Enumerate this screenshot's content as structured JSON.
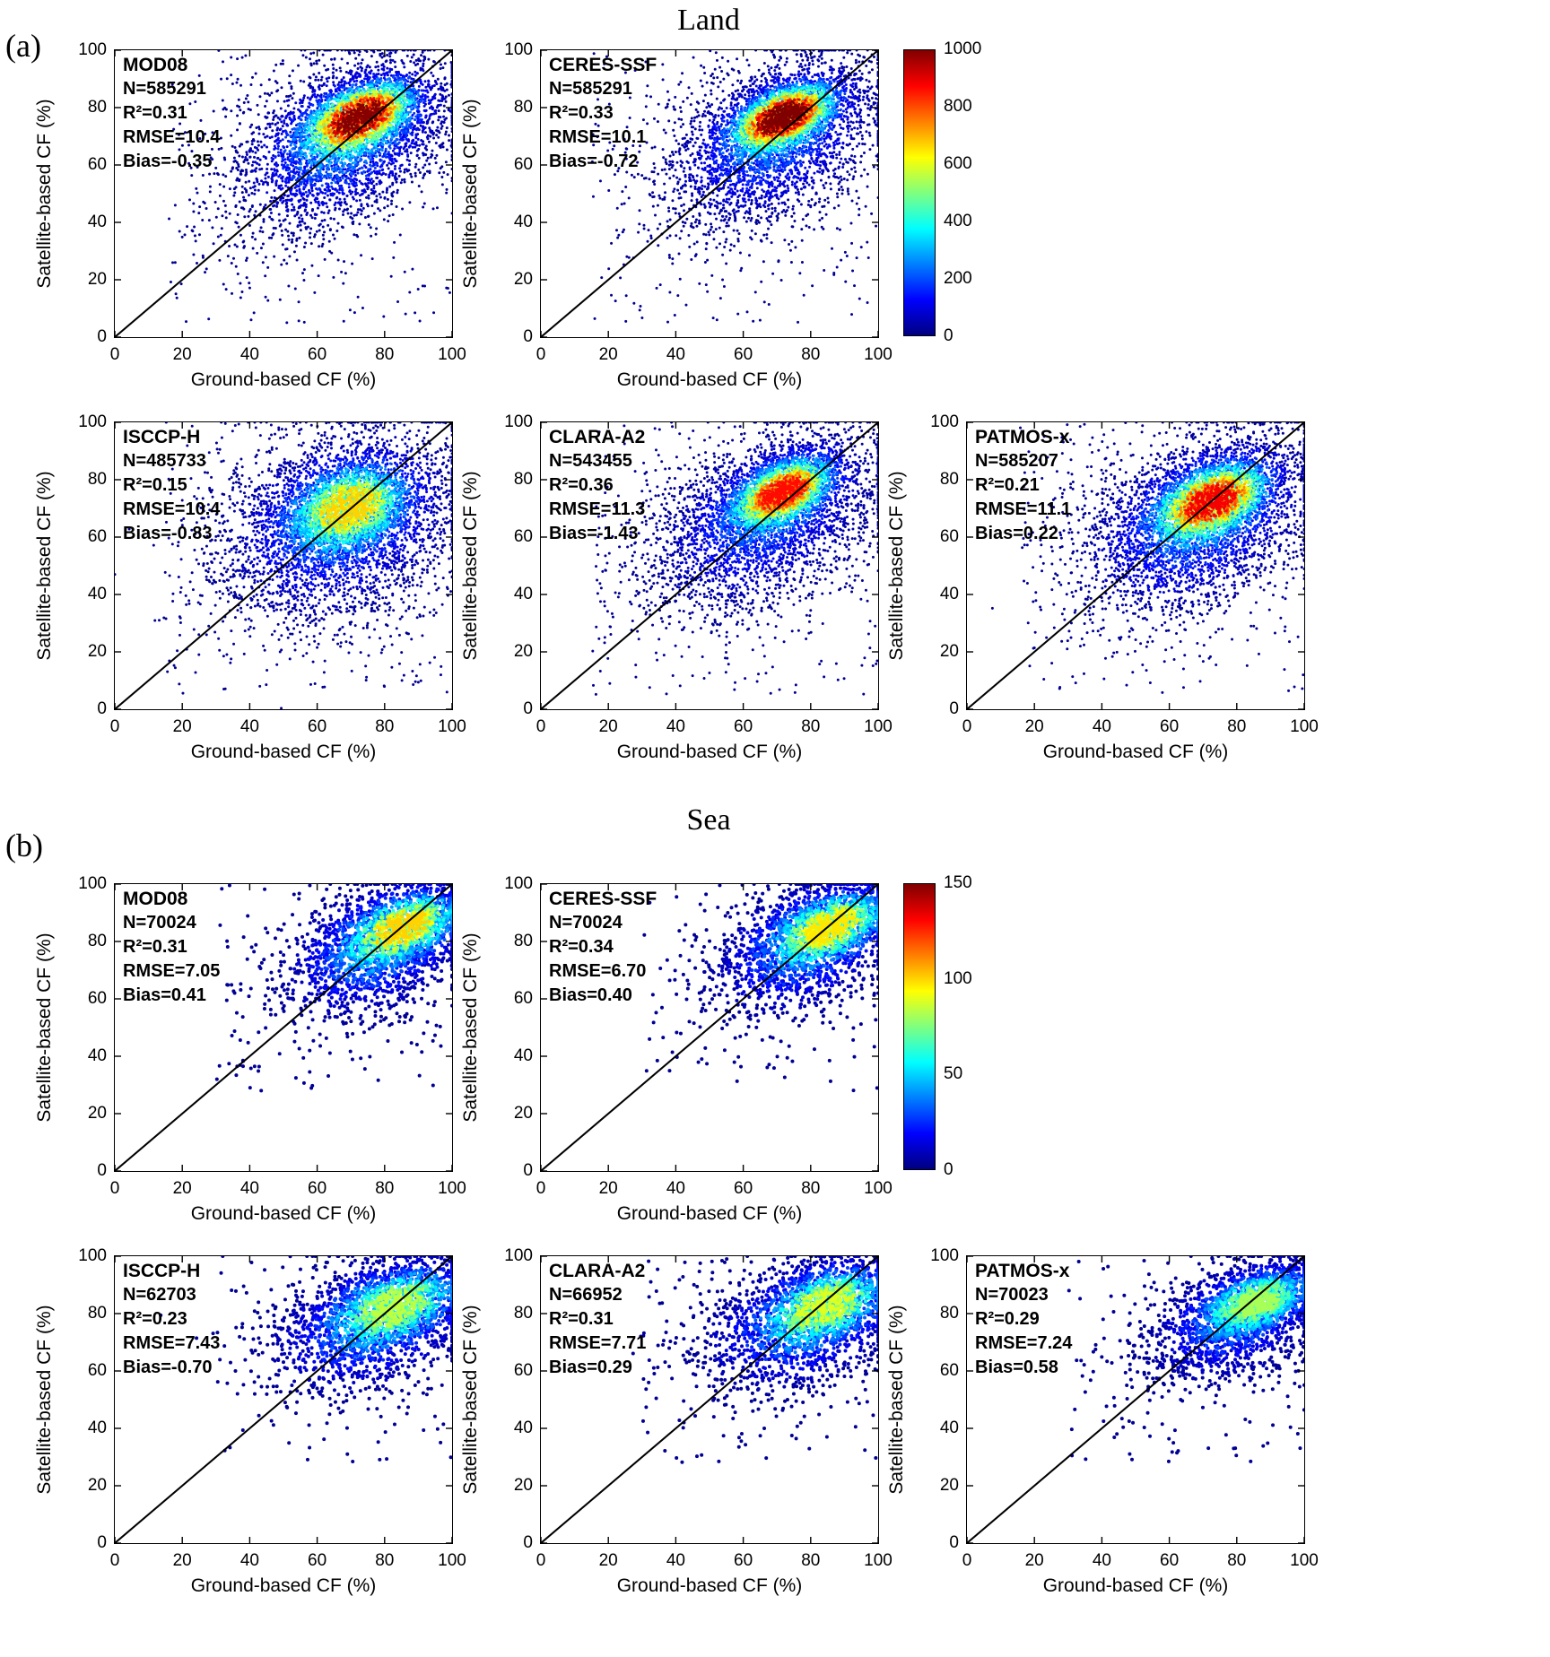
{
  "figure": {
    "panel_a_tag": "(a)",
    "panel_b_tag": "(b)"
  },
  "chart_data": [
    {
      "type": "scatter",
      "panel": "a",
      "title": "Land",
      "xlabel": "Ground-based CF (%)",
      "ylabel": "Satellite-based CF (%)",
      "xlim": [
        0,
        100
      ],
      "ylim": [
        0,
        100
      ],
      "xticks": [
        0,
        20,
        40,
        60,
        80,
        100
      ],
      "yticks": [
        0,
        20,
        40,
        60,
        80,
        100
      ],
      "identity_line": true,
      "colormap": "jet",
      "colorbar": {
        "min": 0,
        "max": 1000,
        "ticks": [
          0,
          200,
          400,
          600,
          800,
          1000
        ]
      },
      "subplots": [
        {
          "name": "MOD08",
          "stats": {
            "N": 585291,
            "R2": 0.31,
            "RMSE": 10.4,
            "Bias": -0.35
          },
          "stats_lines": [
            "N=585291",
            "R²=0.31",
            "RMSE=10.4",
            "Bias=-0.35"
          ],
          "density_profile": {
            "core_center": [
              73,
              77
            ],
            "core_sd": [
              8.5,
              6.5
            ],
            "core_w": 0.42,
            "cloud_center": [
              68,
              68
            ],
            "cloud_sd": [
              16,
              15
            ],
            "cloud_w": 0.54,
            "corr": 0.5,
            "peak": 0.92
          }
        },
        {
          "name": "CERES-SSF",
          "stats": {
            "N": 585291,
            "R2": 0.33,
            "RMSE": 10.1,
            "Bias": -0.72
          },
          "stats_lines": [
            "N=585291",
            "R²=0.33",
            "RMSE=10.1",
            "Bias=-0.72"
          ],
          "density_profile": {
            "core_center": [
              72,
              77
            ],
            "core_sd": [
              8,
              6
            ],
            "core_w": 0.45,
            "cloud_center": [
              69,
              68
            ],
            "cloud_sd": [
              16,
              15
            ],
            "cloud_w": 0.51,
            "corr": 0.5,
            "peak": 0.97
          }
        },
        {
          "name": "ISCCP-H",
          "stats": {
            "N": 485733,
            "R2": 0.15,
            "RMSE": 10.4,
            "Bias": -0.83
          },
          "stats_lines": [
            "N=485733",
            "R²=0.15",
            "RMSE=10.4",
            "Bias=-0.83"
          ],
          "density_profile": {
            "core_center": [
              70,
              71
            ],
            "core_sd": [
              9.5,
              8
            ],
            "core_w": 0.38,
            "cloud_center": [
              66,
              64
            ],
            "cloud_sd": [
              18,
              17
            ],
            "cloud_w": 0.58,
            "corr": 0.3,
            "peak": 0.62
          }
        },
        {
          "name": "CLARA-A2",
          "stats": {
            "N": 543455,
            "R2": 0.36,
            "RMSE": 11.3,
            "Bias": -1.43
          },
          "stats_lines": [
            "N=543455",
            "R²=0.36",
            "RMSE=11.3",
            "Bias=-1.43"
          ],
          "density_profile": {
            "core_center": [
              72,
              76
            ],
            "core_sd": [
              8,
              6.5
            ],
            "core_w": 0.42,
            "cloud_center": [
              66,
              66
            ],
            "cloud_sd": [
              17,
              16
            ],
            "cloud_w": 0.54,
            "corr": 0.5,
            "peak": 0.8
          }
        },
        {
          "name": "PATMOS-x",
          "stats": {
            "N": 585207,
            "R2": 0.21,
            "RMSE": 11.1,
            "Bias": 0.22
          },
          "stats_lines": [
            "N=585207",
            "R²=0.21",
            "RMSE=11.1",
            "Bias=0.22"
          ],
          "density_profile": {
            "core_center": [
              73,
              73
            ],
            "core_sd": [
              9,
              7
            ],
            "core_w": 0.42,
            "cloud_center": [
              68,
              65
            ],
            "cloud_sd": [
              17,
              16
            ],
            "cloud_w": 0.54,
            "corr": 0.45,
            "peak": 0.82
          }
        }
      ]
    },
    {
      "type": "scatter",
      "panel": "b",
      "title": "Sea",
      "xlabel": "Ground-based CF (%)",
      "ylabel": "Satellite-based CF (%)",
      "xlim": [
        0,
        100
      ],
      "ylim": [
        0,
        100
      ],
      "xticks": [
        0,
        20,
        40,
        60,
        80,
        100
      ],
      "yticks": [
        0,
        20,
        40,
        60,
        80,
        100
      ],
      "identity_line": true,
      "colormap": "jet",
      "colorbar": {
        "min": 0,
        "max": 150,
        "ticks": [
          0,
          50,
          100,
          150
        ]
      },
      "subplots": [
        {
          "name": "MOD08",
          "stats": {
            "N": 70024,
            "R2": 0.31,
            "RMSE": 7.05,
            "Bias": 0.41
          },
          "stats_lines": [
            "N=70024",
            "R²=0.31",
            "RMSE=7.05",
            "Bias=0.41"
          ],
          "density_profile": {
            "core_center": [
              87,
              86
            ],
            "core_sd": [
              9,
              6.5
            ],
            "core_w": 0.4,
            "cloud_center": [
              77,
              77
            ],
            "cloud_sd": [
              14,
              12
            ],
            "cloud_w": 0.55,
            "corr": 0.45,
            "peak": 0.62
          }
        },
        {
          "name": "CERES-SSF",
          "stats": {
            "N": 70024,
            "R2": 0.34,
            "RMSE": 6.7,
            "Bias": 0.4
          },
          "stats_lines": [
            "N=70024",
            "R²=0.34",
            "RMSE=6.70",
            "Bias=0.40"
          ],
          "density_profile": {
            "core_center": [
              87,
              86
            ],
            "core_sd": [
              9,
              6.5
            ],
            "core_w": 0.4,
            "cloud_center": [
              78,
              78
            ],
            "cloud_sd": [
              14,
              12
            ],
            "cloud_w": 0.55,
            "corr": 0.45,
            "peak": 0.6
          }
        },
        {
          "name": "ISCCP-H",
          "stats": {
            "N": 62703,
            "R2": 0.23,
            "RMSE": 7.43,
            "Bias": -0.7
          },
          "stats_lines": [
            "N=62703",
            "R²=0.23",
            "RMSE=7.43",
            "Bias=-0.70"
          ],
          "density_profile": {
            "core_center": [
              85,
              84
            ],
            "core_sd": [
              10,
              7
            ],
            "core_w": 0.38,
            "cloud_center": [
              76,
              76
            ],
            "cloud_sd": [
              15,
              12
            ],
            "cloud_w": 0.57,
            "corr": 0.4,
            "peak": 0.52
          }
        },
        {
          "name": "CLARA-A2",
          "stats": {
            "N": 66952,
            "R2": 0.31,
            "RMSE": 7.71,
            "Bias": 0.29
          },
          "stats_lines": [
            "N=66952",
            "R²=0.31",
            "RMSE=7.71",
            "Bias=0.29"
          ],
          "density_profile": {
            "core_center": [
              86,
              84
            ],
            "core_sd": [
              9.5,
              7
            ],
            "core_w": 0.4,
            "cloud_center": [
              77,
              76
            ],
            "cloud_sd": [
              15,
              12
            ],
            "cloud_w": 0.55,
            "corr": 0.4,
            "peak": 0.55
          }
        },
        {
          "name": "PATMOS-x",
          "stats": {
            "N": 70023,
            "R2": 0.29,
            "RMSE": 7.24,
            "Bias": 0.58
          },
          "stats_lines": [
            "N=70023",
            "R²=0.29",
            "RMSE=7.24",
            "Bias=0.58"
          ],
          "density_profile": {
            "core_center": [
              87,
              85
            ],
            "core_sd": [
              9,
              6
            ],
            "core_w": 0.42,
            "cloud_center": [
              79,
              77
            ],
            "cloud_sd": [
              13,
              11
            ],
            "cloud_w": 0.53,
            "corr": 0.45,
            "peak": 0.5
          }
        }
      ]
    }
  ]
}
